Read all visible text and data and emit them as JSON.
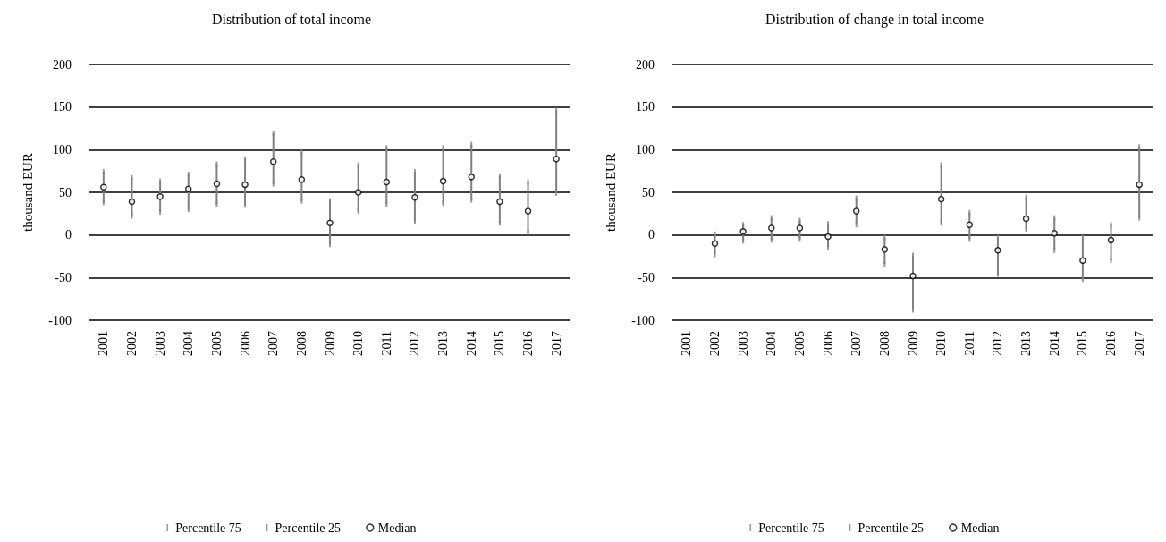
{
  "chart_data": [
    {
      "type": "scatter",
      "title": "Distribution of total income",
      "ylabel": "thousand EUR",
      "categories": [
        "2001",
        "2002",
        "2003",
        "2004",
        "2005",
        "2006",
        "2007",
        "2008",
        "2009",
        "2010",
        "2011",
        "2012",
        "2013",
        "2014",
        "2015",
        "2016",
        "2017"
      ],
      "ylim": [
        -100,
        200
      ],
      "yticks": [
        -100,
        -50,
        0,
        50,
        100,
        150,
        200
      ],
      "grid": "y",
      "legend": "bottom",
      "series": [
        {
          "name": "Percentile 75",
          "color": "#808080",
          "values": [
            74,
            67,
            63,
            71,
            83,
            89,
            119,
            97,
            40,
            82,
            102,
            74,
            102,
            106,
            69,
            62,
            146
          ]
        },
        {
          "name": "Percentile 25",
          "color": "#808080",
          "values": [
            38,
            22,
            27,
            30,
            36,
            35,
            60,
            40,
            -11,
            28,
            36,
            16,
            37,
            41,
            14,
            3,
            49
          ]
        },
        {
          "name": "Median",
          "color": "#000000",
          "marker": "circle",
          "values": [
            56,
            39,
            45,
            54,
            60,
            59,
            86,
            65,
            14,
            50,
            62,
            44,
            63,
            68,
            39,
            28,
            89
          ]
        }
      ]
    },
    {
      "type": "scatter",
      "title": "Distribution of change in total income",
      "ylabel": "thousand EUR",
      "categories": [
        "2001",
        "2002",
        "2003",
        "2004",
        "2005",
        "2006",
        "2007",
        "2008",
        "2009",
        "2010",
        "2011",
        "2012",
        "2013",
        "2014",
        "2015",
        "2016",
        "2017"
      ],
      "ylim": [
        -100,
        200
      ],
      "yticks": [
        -100,
        -50,
        0,
        50,
        100,
        150,
        200
      ],
      "grid": "y",
      "legend": "bottom",
      "series": [
        {
          "name": "Percentile 75",
          "color": "#808080",
          "values": [
            null,
            1,
            12,
            20,
            17,
            13,
            43,
            -3,
            -24,
            82,
            26,
            -3,
            44,
            20,
            -3,
            12,
            103
          ]
        },
        {
          "name": "Percentile 25",
          "color": "#808080",
          "values": [
            null,
            -23,
            -7,
            -6,
            -5,
            -14,
            12,
            -34,
            -88,
            14,
            -5,
            -46,
            7,
            -18,
            -52,
            -30,
            20
          ]
        },
        {
          "name": "Median",
          "color": "#000000",
          "marker": "circle",
          "values": [
            null,
            -10,
            4,
            8,
            8,
            -2,
            28,
            -17,
            -48,
            42,
            12,
            -18,
            19,
            2,
            -30,
            -6,
            59
          ]
        }
      ]
    }
  ]
}
